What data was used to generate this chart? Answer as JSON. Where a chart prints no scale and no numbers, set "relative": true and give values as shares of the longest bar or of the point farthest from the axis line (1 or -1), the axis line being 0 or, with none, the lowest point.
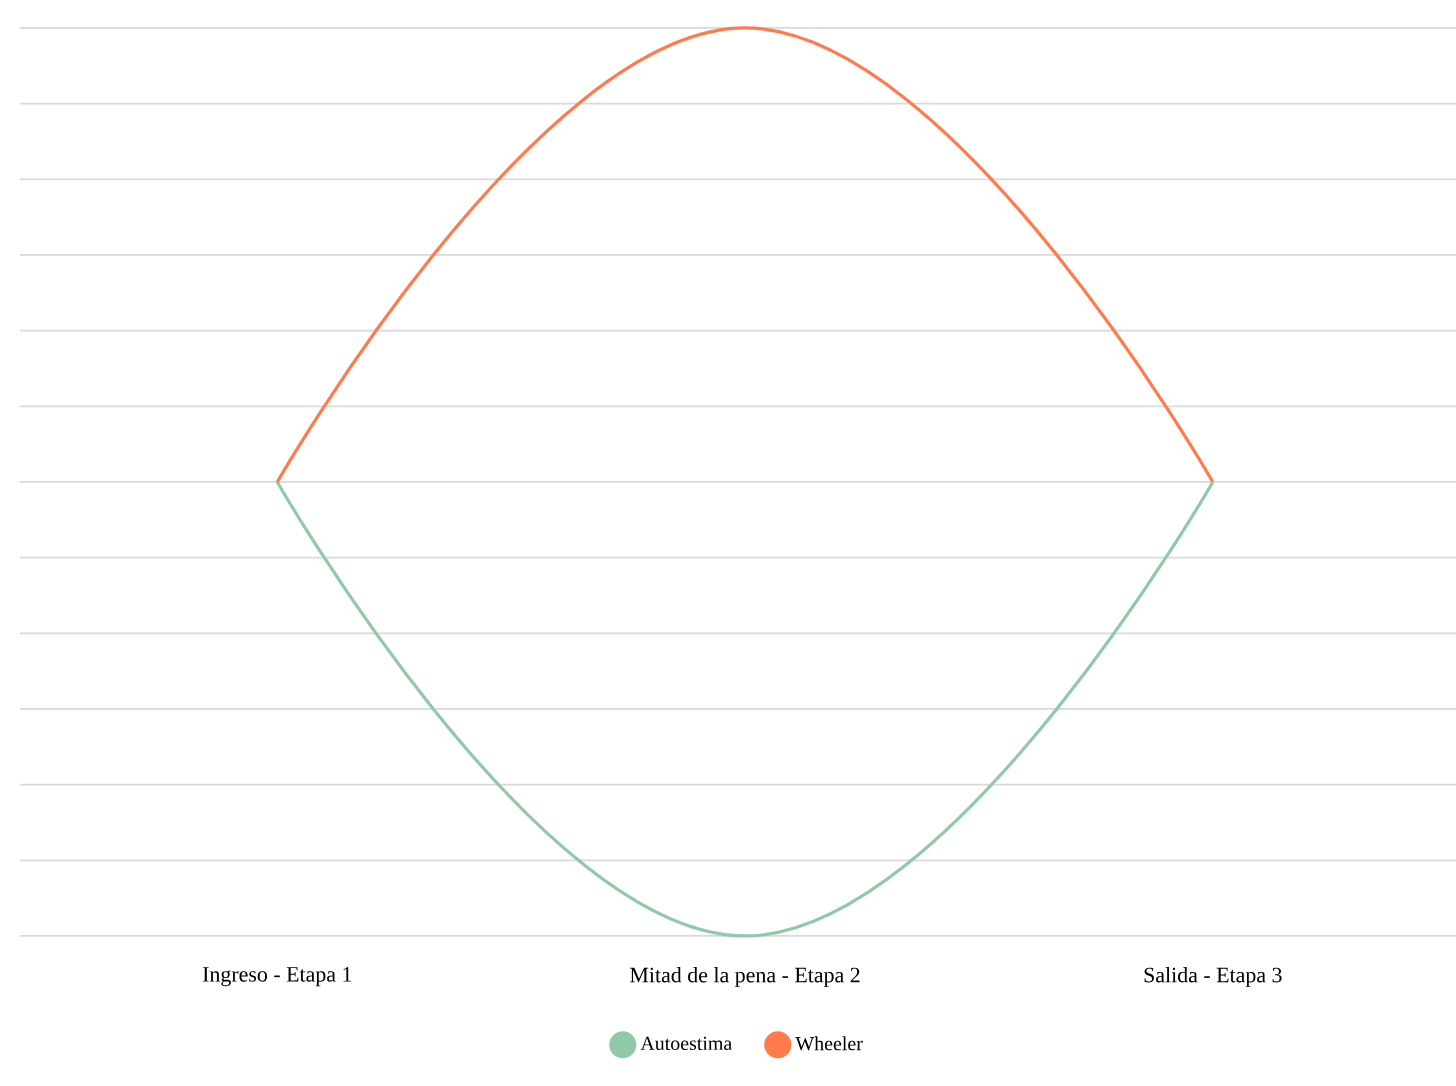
{
  "chart_data": {
    "type": "line",
    "relative": true,
    "categories": [
      "Ingreso - Etapa 1",
      "Mitad de la pena - Etapa 2",
      "Salida - Etapa 3"
    ],
    "series": [
      {
        "name": "Autoestima",
        "color": "#8fc9a8",
        "values": [
          0.5,
          0,
          0.5
        ]
      },
      {
        "name": "Wheeler",
        "color": "#ff7a4d",
        "values": [
          0.5,
          1,
          0.5
        ]
      }
    ],
    "grid": "y",
    "legend": "bottom",
    "tick_labels": "x",
    "marker": "none"
  }
}
